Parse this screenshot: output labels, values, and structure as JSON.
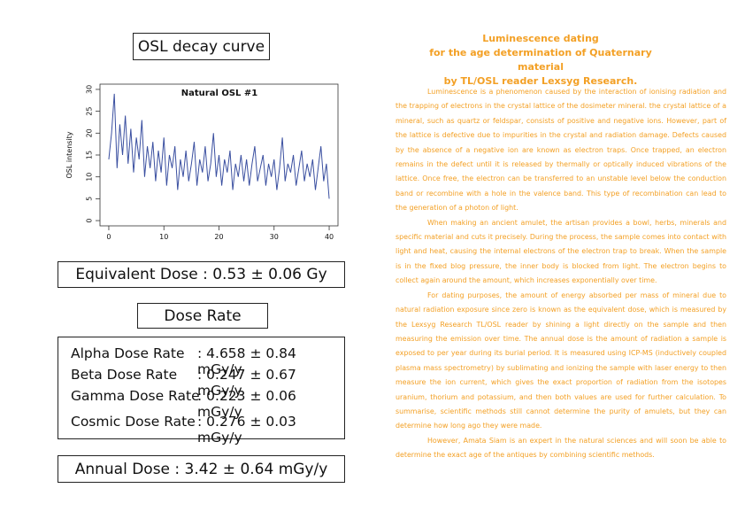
{
  "left": {
    "heading": "OSL decay curve",
    "equivalent_dose": "Equivalent Dose : 0.53 ±  0.06 Gy",
    "dose_rate_heading": "Dose Rate",
    "dose_rates": [
      {
        "label": "Alpha Dose Rate",
        "value": ": 4.658 ±  0.84 mGy/y"
      },
      {
        "label": "Beta Dose Rate",
        "value": ": 0.247 ±  0.67 mGy/y"
      },
      {
        "label": "Gamma Dose Rate",
        "value": ": 0.223 ±  0.06 mGy/y"
      },
      {
        "label": "Cosmic Dose Rate",
        "value": ": 0.276 ± 0.03 mGy/y"
      }
    ],
    "annual_dose": "Annual Dose : 3.42 ±  0.64 mGy/y"
  },
  "chart_data": {
    "type": "line",
    "title": "Natural OSL #1",
    "y_label": "OSL intensity",
    "color": "#3a4fa0",
    "x": [
      0,
      0.5,
      1,
      1.5,
      2,
      2.5,
      3,
      3.5,
      4,
      4.5,
      5,
      5.5,
      6,
      6.5,
      7,
      7.5,
      8,
      8.5,
      9,
      9.5,
      10,
      10.5,
      11,
      11.5,
      12,
      12.5,
      13,
      13.5,
      14,
      14.5,
      15,
      15.5,
      16,
      16.5,
      17,
      17.5,
      18,
      18.5,
      19,
      19.5,
      20,
      20.5,
      21,
      21.5,
      22,
      22.5,
      23,
      23.5,
      24,
      24.5,
      25,
      25.5,
      26,
      26.5,
      27,
      27.5,
      28,
      28.5,
      29,
      29.5,
      30,
      30.5,
      31,
      31.5,
      32,
      32.5,
      33,
      33.5,
      34,
      34.5,
      35,
      35.5,
      36,
      36.5,
      37,
      37.5,
      38,
      38.5,
      39,
      39.5,
      40
    ],
    "values": [
      14,
      20,
      29,
      12,
      22,
      15,
      24,
      13,
      21,
      11,
      19,
      14,
      23,
      10,
      17,
      12,
      18,
      9,
      16,
      11,
      19,
      8,
      15,
      12,
      17,
      7,
      14,
      10,
      16,
      9,
      13,
      18,
      8,
      14,
      11,
      17,
      9,
      13,
      20,
      10,
      15,
      8,
      14,
      11,
      16,
      7,
      13,
      10,
      15,
      9,
      14,
      8,
      13,
      17,
      9,
      12,
      15,
      8,
      13,
      10,
      14,
      7,
      12,
      19,
      9,
      13,
      11,
      15,
      8,
      12,
      16,
      9,
      13,
      10,
      14,
      7,
      12,
      17,
      9,
      13,
      5
    ],
    "xlim": [
      -1.6,
      41.6
    ],
    "ylim": [
      -1.2,
      31.2
    ],
    "xticks": [
      0,
      10,
      20,
      30,
      40
    ],
    "yticks": [
      0,
      5,
      10,
      15,
      20,
      25,
      30
    ]
  },
  "right": {
    "title": [
      "Luminescence dating",
      "for the age determination of Quaternary material",
      "by TL/OSL reader Lexsyg Research."
    ],
    "paragraphs": [
      "Luminescence is a phenomenon caused by the interaction of ionising radiation and the trapping of electrons in the crystal lattice of the dosimeter mineral. the crystal lattice of a mineral, such as quartz or feldspar, consists of positive and negative ions. However, part of the lattice is defective due to impurities in the crystal and radiation damage. Defects caused by the absence of a negative ion are known as electron traps. Once trapped, an electron remains in the defect until it is released by thermally or optically induced vibrations of the lattice. Once free, the electron can be transferred to an unstable level below the conduction band or recombine with a hole in the valence band. This type of recombination can lead to the generation of a photon of light.",
      "When making an ancient amulet, the artisan provides a bowl, herbs, minerals and specific material and cuts it precisely. During the process, the sample comes into contact with light and heat, causing the internal electrons of the electron trap to break. When the sample is in the fixed blog pressure, the inner body is blocked from light. The electron begins to collect again around the amount, which increases exponentially over time.",
      "For dating purposes, the amount of energy absorbed per mass of mineral due to natural radiation exposure since zero is known as the equivalent dose, which is measured by the Lexsyg Research TL/OSL reader by shining a light directly on the sample and then measuring the emission over time. The annual dose is the amount of radiation a sample is exposed to per year during its burial period. It is measured using ICP-MS (inductively coupled plasma mass spectrometry) by sublimating and ionizing the sample with laser energy to then measure the ion current, which gives the exact proportion of radiation from the isotopes uranium, thorium and potassium, and then both values are used for further calculation. To summarise, scientific methods still cannot determine the purity of amulets, but they can determine how long ago they were made.",
      "However, Amata Siam is an expert in the natural sciences and will soon be able to determine the exact age of the antiques by combining scientific methods."
    ]
  }
}
